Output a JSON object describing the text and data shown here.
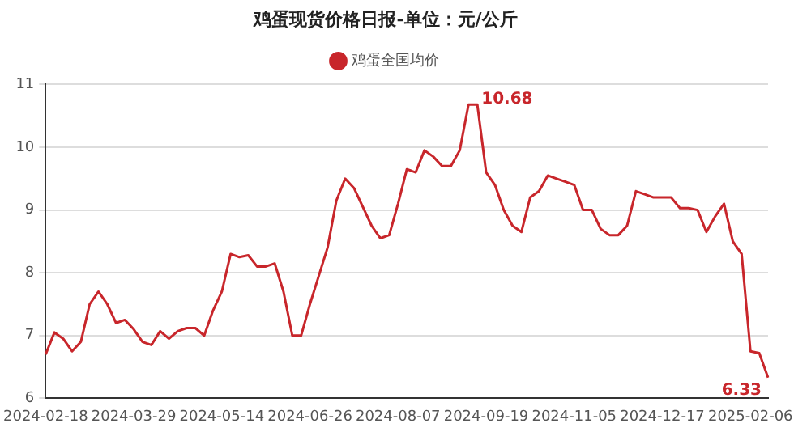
{
  "chart_data": {
    "type": "line",
    "title": "鸡蛋现货价格日报-单位：元/公斤",
    "legend": "top",
    "grid": "y",
    "marker": "none",
    "line_style": "solid",
    "categories": [
      "2024-02-18",
      null,
      null,
      null,
      null,
      null,
      null,
      null,
      null,
      null,
      "2024-03-29",
      null,
      null,
      null,
      null,
      null,
      null,
      null,
      null,
      null,
      "2024-05-14",
      null,
      null,
      null,
      null,
      null,
      null,
      null,
      null,
      null,
      "2024-06-26",
      null,
      null,
      null,
      null,
      null,
      null,
      null,
      null,
      null,
      "2024-08-07",
      null,
      null,
      null,
      null,
      null,
      null,
      null,
      null,
      null,
      "2024-09-19",
      null,
      null,
      null,
      null,
      null,
      null,
      null,
      null,
      null,
      "2024-11-05",
      null,
      null,
      null,
      null,
      null,
      null,
      null,
      null,
      null,
      "2024-12-17",
      null,
      null,
      null,
      null,
      null,
      null,
      null,
      null,
      null,
      "2025-02-06",
      null,
      null
    ],
    "series": [
      {
        "name": "鸡蛋全国均价",
        "color": "#c8262b",
        "values": [
          6.7,
          7.05,
          6.95,
          6.75,
          6.9,
          7.5,
          7.7,
          7.5,
          7.2,
          7.25,
          7.1,
          6.9,
          6.85,
          7.07,
          6.95,
          7.07,
          7.12,
          7.12,
          7.0,
          7.4,
          7.7,
          8.3,
          8.25,
          8.28,
          8.1,
          8.1,
          8.15,
          7.7,
          7.0,
          7.0,
          7.5,
          7.95,
          8.4,
          9.15,
          9.5,
          9.35,
          9.05,
          8.75,
          8.55,
          8.6,
          9.1,
          9.65,
          9.6,
          9.95,
          9.85,
          9.7,
          9.7,
          9.95,
          10.68,
          10.68,
          9.6,
          9.4,
          9.0,
          8.75,
          8.65,
          9.2,
          9.3,
          9.55,
          9.5,
          9.45,
          9.4,
          9.0,
          9.0,
          8.7,
          8.6,
          8.6,
          8.75,
          9.3,
          9.25,
          9.2,
          9.2,
          9.2,
          9.03,
          9.03,
          9.0,
          8.65,
          8.9,
          9.1,
          8.5,
          8.3,
          6.75,
          6.72,
          6.33
        ],
        "value_labels": [
          null,
          null,
          null,
          null,
          null,
          null,
          null,
          null,
          null,
          null,
          null,
          null,
          null,
          null,
          null,
          null,
          null,
          null,
          null,
          null,
          null,
          null,
          null,
          null,
          null,
          null,
          null,
          null,
          null,
          null,
          null,
          null,
          null,
          null,
          null,
          null,
          null,
          null,
          null,
          null,
          null,
          null,
          null,
          null,
          null,
          null,
          null,
          null,
          "10.68",
          null,
          null,
          null,
          null,
          null,
          null,
          null,
          null,
          null,
          null,
          null,
          null,
          null,
          null,
          null,
          null,
          null,
          null,
          null,
          null,
          null,
          null,
          null,
          null,
          null,
          null,
          null,
          null,
          null,
          null,
          null,
          null,
          null,
          "6.33"
        ]
      }
    ],
    "ylim": [
      6,
      11
    ],
    "yticks": [
      6,
      7,
      8,
      9,
      10,
      11
    ]
  }
}
